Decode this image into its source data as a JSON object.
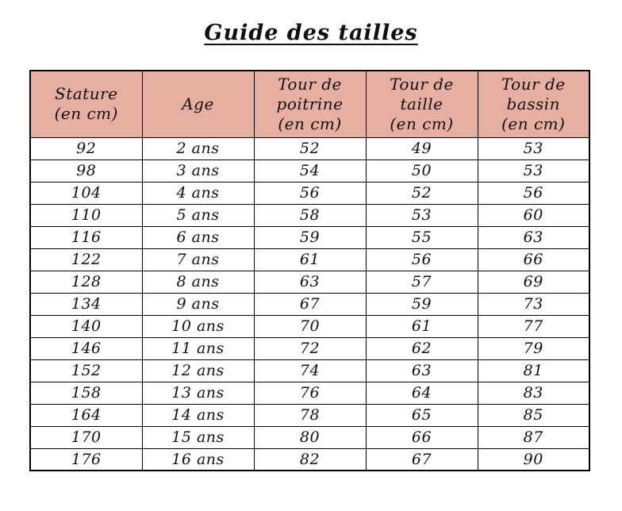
{
  "title": "Guide des tailles",
  "table": {
    "header_bg": "#e7aea2",
    "border_color": "#000000",
    "columns": [
      "Stature\n(en cm)",
      "Age",
      "Tour de\npoitrine\n(en cm)",
      "Tour de\ntaille\n(en cm)",
      "Tour de\nbassin\n(en cm)"
    ],
    "rows": [
      [
        "92",
        "2 ans",
        "52",
        "49",
        "53"
      ],
      [
        "98",
        "3 ans",
        "54",
        "50",
        "53"
      ],
      [
        "104",
        "4 ans",
        "56",
        "52",
        "56"
      ],
      [
        "110",
        "5 ans",
        "58",
        "53",
        "60"
      ],
      [
        "116",
        "6 ans",
        "59",
        "55",
        "63"
      ],
      [
        "122",
        "7 ans",
        "61",
        "56",
        "66"
      ],
      [
        "128",
        "8 ans",
        "63",
        "57",
        "69"
      ],
      [
        "134",
        "9 ans",
        "67",
        "59",
        "73"
      ],
      [
        "140",
        "10 ans",
        "70",
        "61",
        "77"
      ],
      [
        "146",
        "11 ans",
        "72",
        "62",
        "79"
      ],
      [
        "152",
        "12 ans",
        "74",
        "63",
        "81"
      ],
      [
        "158",
        "13 ans",
        "76",
        "64",
        "83"
      ],
      [
        "164",
        "14 ans",
        "78",
        "65",
        "85"
      ],
      [
        "170",
        "15 ans",
        "80",
        "66",
        "87"
      ],
      [
        "176",
        "16 ans",
        "82",
        "67",
        "90"
      ]
    ]
  }
}
